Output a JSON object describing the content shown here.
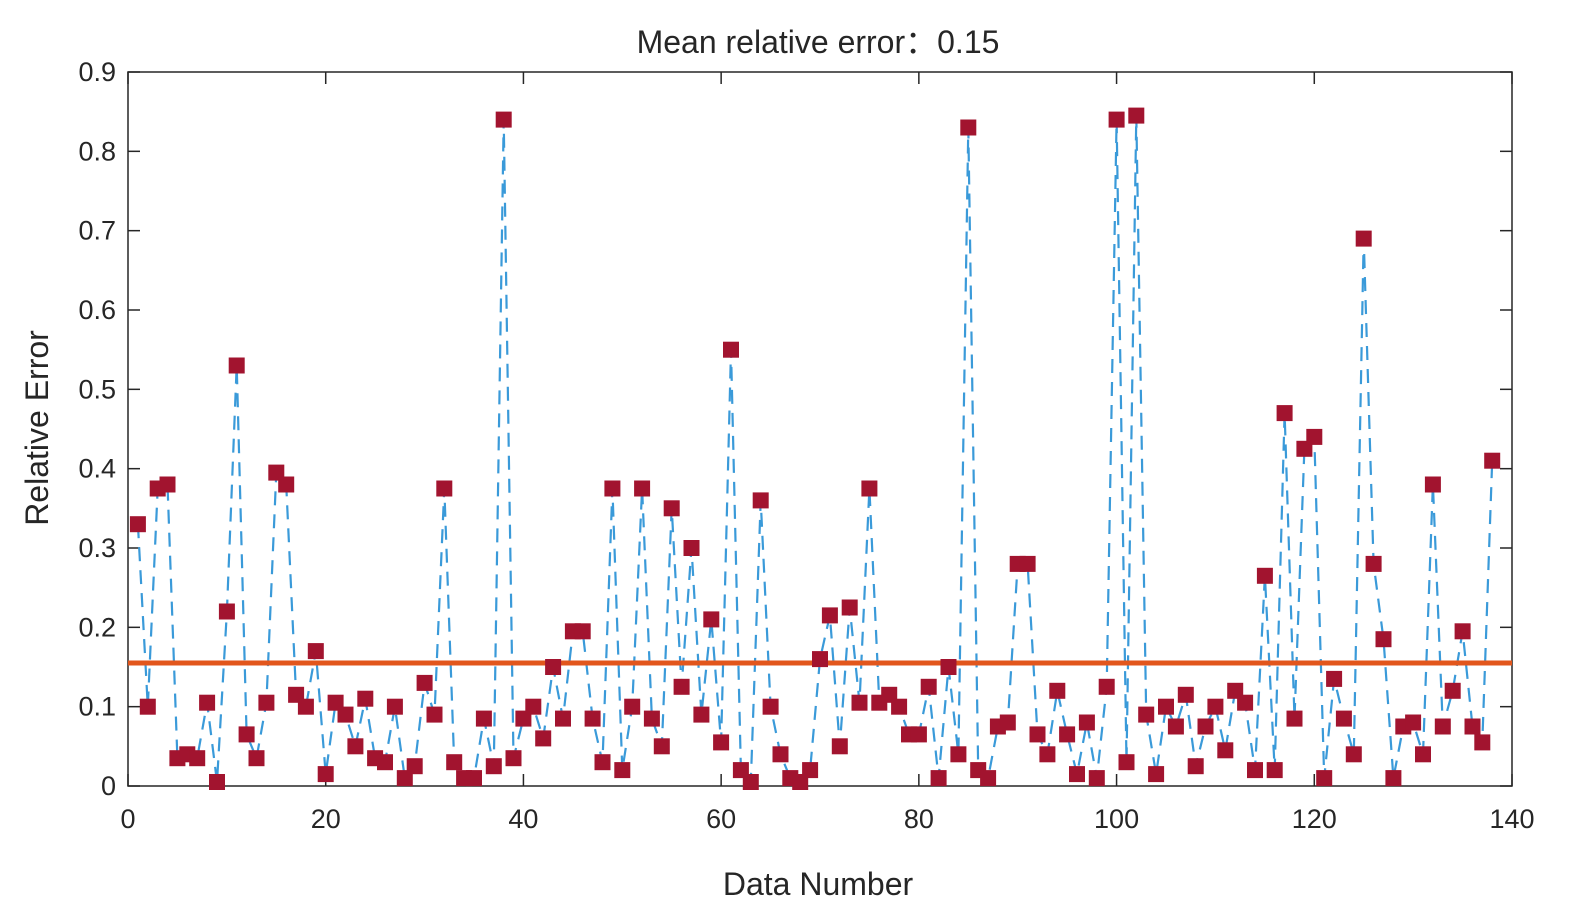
{
  "chart_data": {
    "type": "line",
    "title": "Mean relative error：0.15",
    "xlabel": "Data Number",
    "ylabel": "Relative Error",
    "xlim": [
      0,
      140
    ],
    "ylim": [
      0,
      0.9
    ],
    "xticks": [
      0,
      20,
      40,
      60,
      80,
      100,
      120,
      140
    ],
    "yticks": [
      0,
      0.1,
      0.2,
      0.3,
      0.4,
      0.5,
      0.6,
      0.7,
      0.8,
      0.9
    ],
    "xtick_labels": [
      "0",
      "20",
      "40",
      "60",
      "80",
      "100",
      "120",
      "140"
    ],
    "ytick_labels": [
      "0",
      "0.1",
      "0.2",
      "0.3",
      "0.4",
      "0.5",
      "0.6",
      "0.7",
      "0.8",
      "0.9"
    ],
    "grid": false,
    "series": [
      {
        "style": "dashed line with square markers",
        "line_color": "#3a9ad9",
        "marker_color": "#a2142f",
        "x": [
          1,
          2,
          3,
          4,
          5,
          6,
          7,
          8,
          9,
          10,
          11,
          12,
          13,
          14,
          15,
          16,
          17,
          18,
          19,
          20,
          21,
          22,
          23,
          24,
          25,
          26,
          27,
          28,
          29,
          30,
          31,
          32,
          33,
          34,
          35,
          36,
          37,
          38,
          39,
          40,
          41,
          42,
          43,
          44,
          45,
          46,
          47,
          48,
          49,
          50,
          51,
          52,
          53,
          54,
          55,
          56,
          57,
          58,
          59,
          60,
          61,
          62,
          63,
          64,
          65,
          66,
          67,
          68,
          69,
          70,
          71,
          72,
          73,
          74,
          75,
          76,
          77,
          78,
          79,
          80,
          81,
          82,
          83,
          84,
          85,
          86,
          87,
          88,
          89,
          90,
          91,
          92,
          93,
          94,
          95,
          96,
          97,
          98,
          99,
          100,
          101,
          102,
          103,
          104,
          105,
          106,
          107,
          108,
          109,
          110,
          111,
          112,
          113,
          114,
          115,
          116,
          117,
          118,
          119,
          120,
          121,
          122,
          123,
          124,
          125,
          126,
          127,
          128,
          129,
          130,
          131,
          132,
          133,
          134,
          135,
          136,
          137,
          138
        ],
        "y": [
          0.33,
          0.1,
          0.375,
          0.38,
          0.035,
          0.04,
          0.035,
          0.105,
          0.005,
          0.22,
          0.53,
          0.065,
          0.035,
          0.105,
          0.395,
          0.38,
          0.115,
          0.1,
          0.17,
          0.015,
          0.105,
          0.09,
          0.05,
          0.11,
          0.035,
          0.03,
          0.1,
          0.01,
          0.025,
          0.13,
          0.09,
          0.375,
          0.03,
          0.01,
          0.01,
          0.085,
          0.025,
          0.84,
          0.035,
          0.085,
          0.1,
          0.06,
          0.15,
          0.085,
          0.195,
          0.195,
          0.085,
          0.03,
          0.375,
          0.02,
          0.1,
          0.375,
          0.085,
          0.05,
          0.35,
          0.125,
          0.3,
          0.09,
          0.21,
          0.055,
          0.55,
          0.02,
          0.005,
          0.36,
          0.1,
          0.04,
          0.01,
          0.005,
          0.02,
          0.16,
          0.215,
          0.05,
          0.225,
          0.105,
          0.375,
          0.105,
          0.115,
          0.1,
          0.065,
          0.065,
          0.125,
          0.01,
          0.15,
          0.04,
          0.83,
          0.02,
          0.01,
          0.075,
          0.08,
          0.28,
          0.28,
          0.065,
          0.04,
          0.12,
          0.065,
          0.015,
          0.08,
          0.01,
          0.125,
          0.84,
          0.03,
          0.845,
          0.09,
          0.015,
          0.1,
          0.075,
          0.115,
          0.025,
          0.075,
          0.1,
          0.045,
          0.12,
          0.105,
          0.02,
          0.265,
          0.02,
          0.47,
          0.085,
          0.425,
          0.44,
          0.01,
          0.135,
          0.085,
          0.04,
          0.69,
          0.28,
          0.185,
          0.01,
          0.075,
          0.08,
          0.04,
          0.38,
          0.075,
          0.12,
          0.195,
          0.075,
          0.055,
          0.41
        ]
      }
    ],
    "mean_line": {
      "y": 0.155,
      "color": "#e2561c",
      "label": ""
    }
  }
}
